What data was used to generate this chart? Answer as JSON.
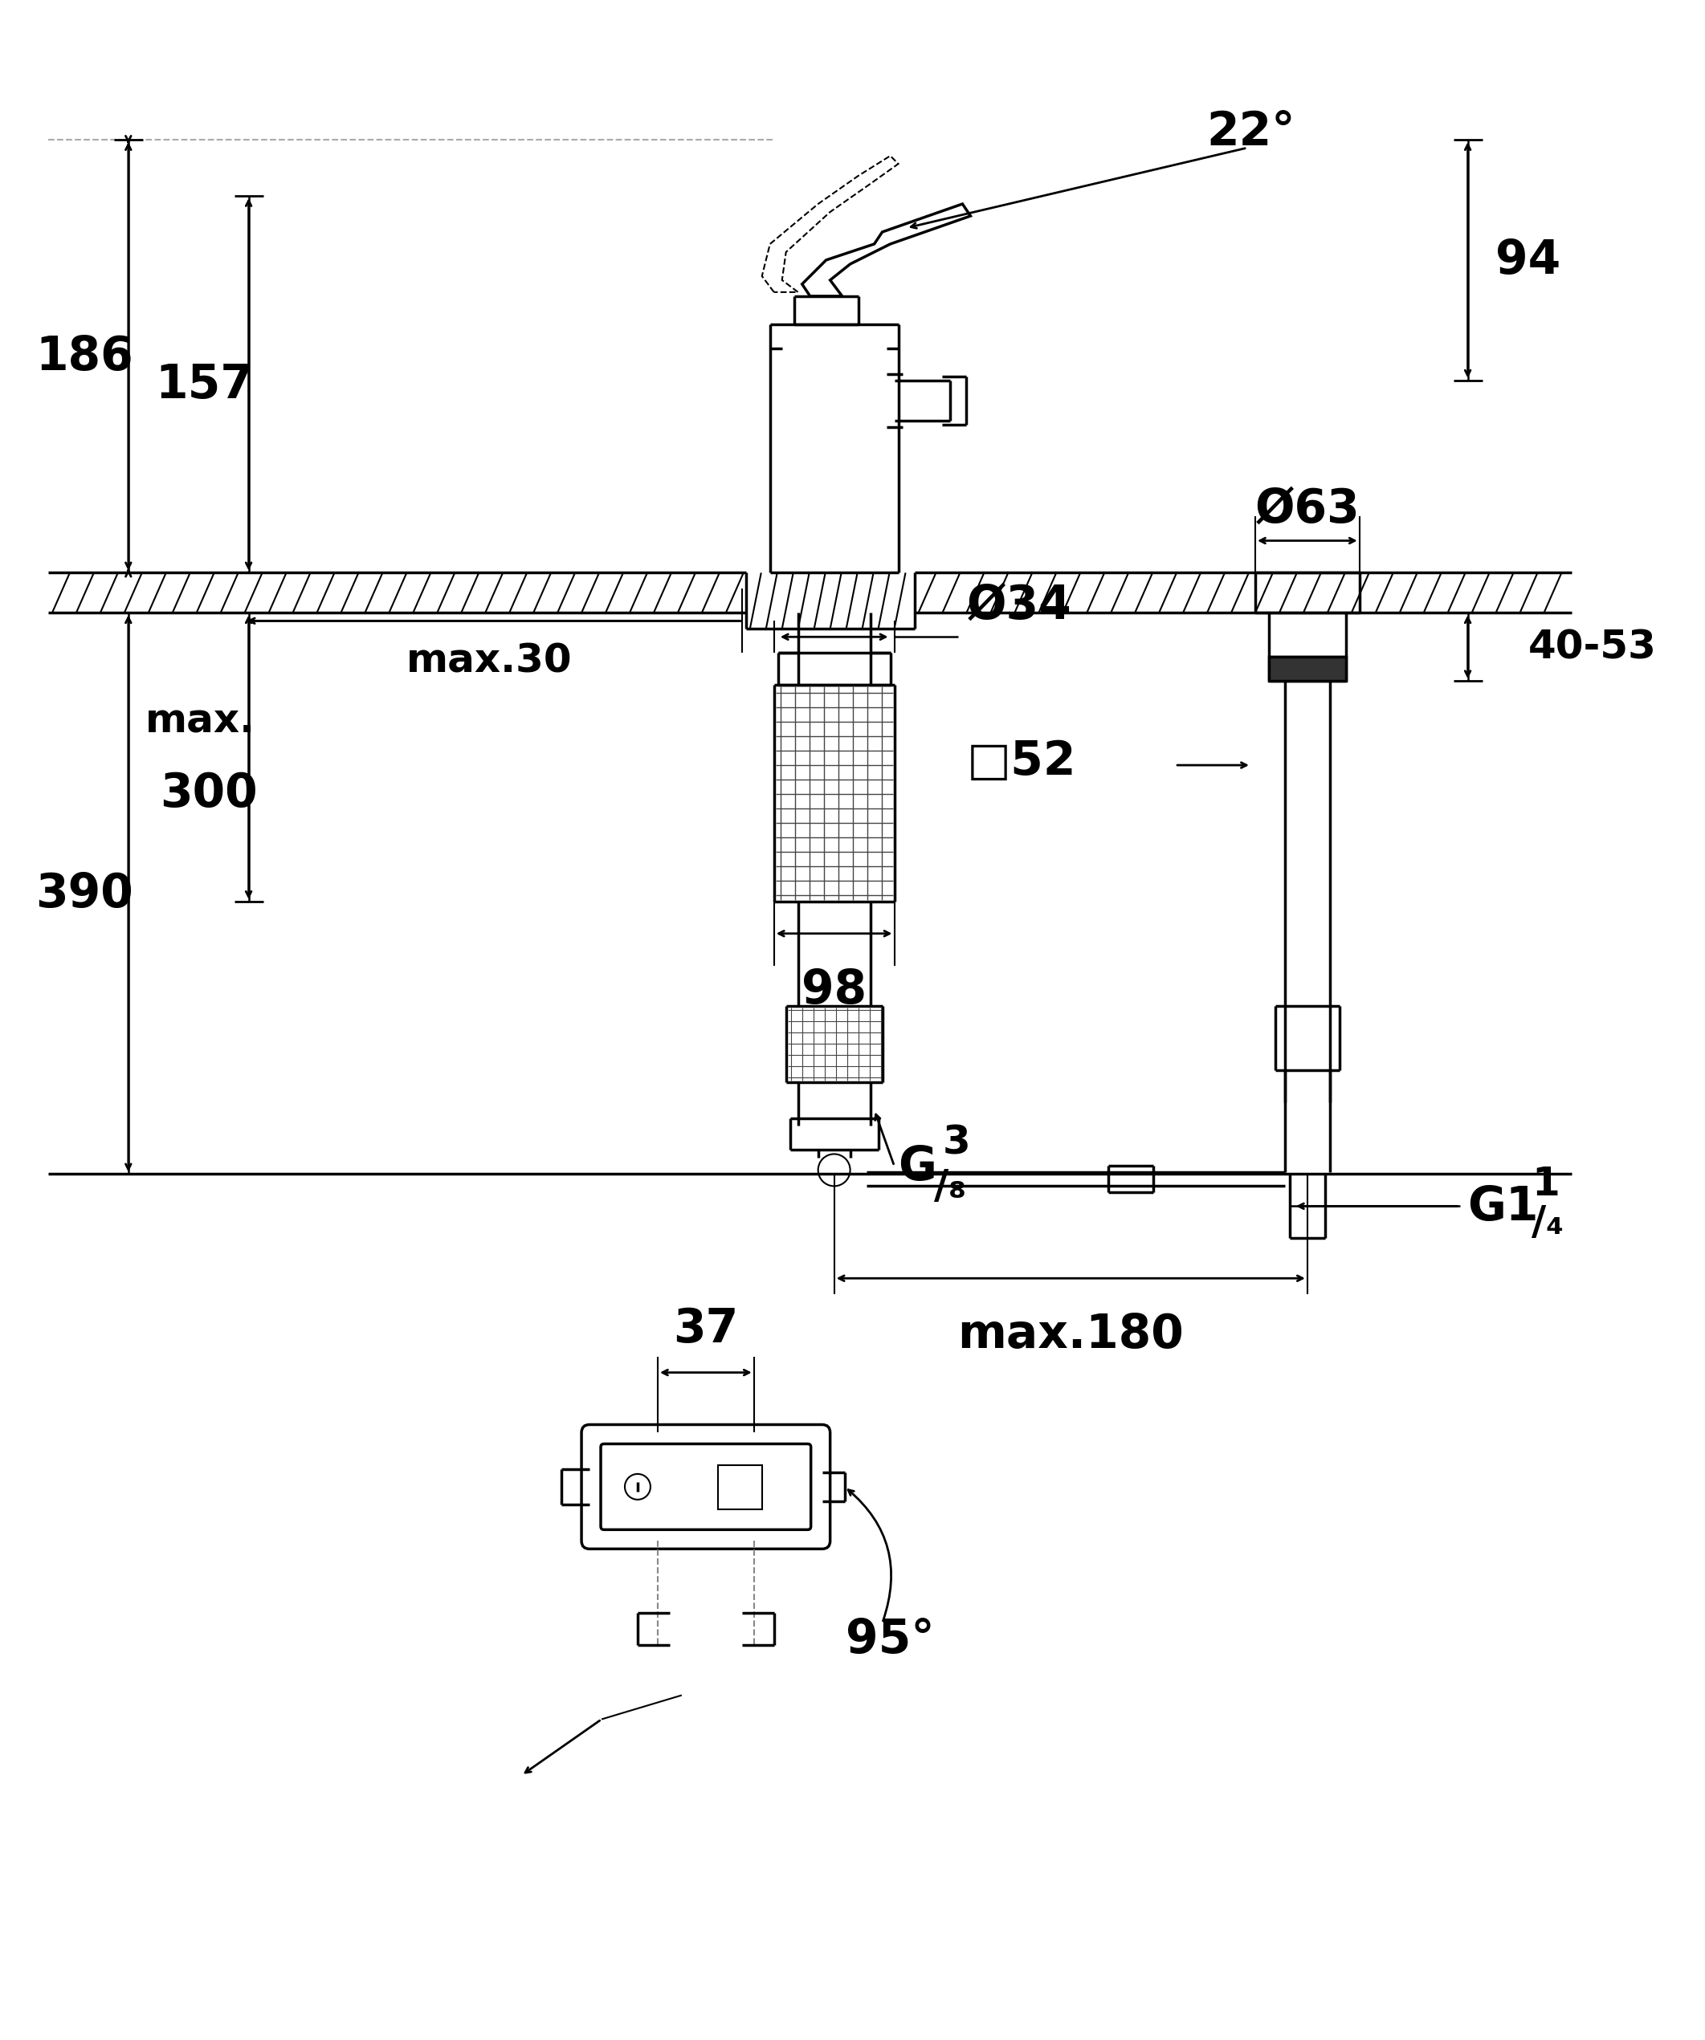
{
  "bg_color": "#ffffff",
  "line_color": "#000000",
  "fig_width": 21.06,
  "fig_height": 25.25
}
